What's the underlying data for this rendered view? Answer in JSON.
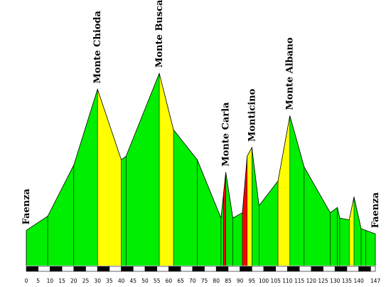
{
  "chart_data": {
    "type": "area",
    "title": "",
    "xlabel": "",
    "ylabel": "",
    "xlim": [
      0,
      147
    ],
    "x_tick_labels": [
      "0",
      "5",
      "10",
      "15",
      "20",
      "25",
      "30",
      "35",
      "40",
      "45",
      "50",
      "55",
      "60",
      "65",
      "70",
      "75",
      "80",
      "85",
      "90",
      "95",
      "100",
      "105",
      "110",
      "115",
      "120",
      "125",
      "130",
      "135",
      "140",
      "147"
    ],
    "profile_points": [
      {
        "km": 0,
        "level": 20
      },
      {
        "km": 9,
        "level": 28
      },
      {
        "km": 20,
        "level": 57
      },
      {
        "km": 30,
        "level": 100
      },
      {
        "km": 40,
        "level": 60
      },
      {
        "km": 42,
        "level": 62
      },
      {
        "km": 56,
        "level": 109
      },
      {
        "km": 62,
        "level": 77
      },
      {
        "km": 72,
        "level": 60
      },
      {
        "km": 82,
        "level": 27
      },
      {
        "km": 84,
        "level": 53
      },
      {
        "km": 87,
        "level": 27
      },
      {
        "km": 91,
        "level": 30
      },
      {
        "km": 93,
        "level": 62
      },
      {
        "km": 95,
        "level": 67
      },
      {
        "km": 98,
        "level": 34
      },
      {
        "km": 106,
        "level": 48
      },
      {
        "km": 111,
        "level": 85
      },
      {
        "km": 117,
        "level": 56
      },
      {
        "km": 128,
        "level": 30
      },
      {
        "km": 131,
        "level": 33
      },
      {
        "km": 132,
        "level": 27
      },
      {
        "km": 136,
        "level": 26
      },
      {
        "km": 138,
        "level": 39
      },
      {
        "km": 141,
        "level": 21
      },
      {
        "km": 143,
        "level": 20
      },
      {
        "km": 147,
        "level": 18
      }
    ],
    "climb_segments": [
      {
        "from": 30,
        "to": 40,
        "color": "#ffff00"
      },
      {
        "from": 56,
        "to": 62,
        "color": "#ffff00"
      },
      {
        "from": 83,
        "to": 84,
        "color": "#ff0000"
      },
      {
        "from": 91,
        "to": 93,
        "color": "#ff0000"
      },
      {
        "from": 93,
        "to": 95,
        "color": "#ffff00"
      },
      {
        "from": 106,
        "to": 111,
        "color": "#ffff00"
      },
      {
        "from": 136,
        "to": 138,
        "color": "#ffff00"
      }
    ],
    "labels": [
      {
        "text": "Faenza",
        "km": 0
      },
      {
        "text": "Monte Chioda",
        "km": 30
      },
      {
        "text": "Monte Busca",
        "km": 56
      },
      {
        "text": "Monte Carla",
        "km": 84
      },
      {
        "text": "Monticino",
        "km": 95
      },
      {
        "text": "Monte Albano",
        "km": 111
      },
      {
        "text": "Faenza",
        "km": 147
      }
    ],
    "colors": {
      "base": "#00ee00",
      "climb": "#ffff00",
      "steep": "#ff0000",
      "outline": "#000000"
    },
    "grid": false,
    "legend": "none"
  }
}
